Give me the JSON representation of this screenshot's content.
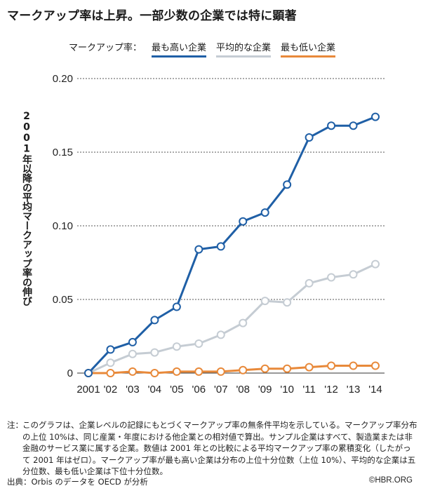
{
  "title": "マークアップ率は上昇。一部少数の企業では特に顕著",
  "legend": {
    "prefix": "マークアップ率：",
    "items": [
      {
        "label": "最も高い企業",
        "color": "#1f5fa6"
      },
      {
        "label": "平均的な企業",
        "color": "#c5ccd3"
      },
      {
        "label": "最も低い企業",
        "color": "#e8893a"
      }
    ]
  },
  "note": {
    "head": "注：",
    "body": "このグラフは、企業レベルの記録にもとづくマークアップ率の無条件平均を示している。マークアップ率分布の上位 10%は、同じ産業・年度における他企業との相対値で算出。サンプル企業はすべて、製造業または非金融のサービス業に属する企業。数値は 2001 年との比較による平均マークアップ率の累積変化（したがって 2001 年はゼロ）。マークアップ率が最も高い企業は分布の上位十分位数（上位 10%）、平均的な企業は五分位数、最も低い企業は下位十分位数。"
  },
  "source": "出典：Orbis のデータを OECD が分析",
  "credit": "©HBR.ORG",
  "chart_data": {
    "type": "line",
    "ylabel": "2001年以降の平均マークアップ率の伸び",
    "xlabel": "",
    "categories": [
      "2001",
      "'02",
      "'03",
      "'04",
      "'05",
      "'06",
      "'07",
      "'08",
      "'09",
      "'10",
      "'11",
      "'12",
      "'13",
      "'14"
    ],
    "yticks": [
      "0",
      "0.05",
      "0.10",
      "0.15",
      "0.20"
    ],
    "ylim": [
      0,
      0.2
    ],
    "grid": true,
    "series": [
      {
        "name": "最も高い企業",
        "color": "#1f5fa6",
        "values": [
          0,
          0.016,
          0.021,
          0.036,
          0.045,
          0.084,
          0.086,
          0.103,
          0.109,
          0.128,
          0.16,
          0.168,
          0.168,
          0.174
        ]
      },
      {
        "name": "平均的な企業",
        "color": "#c5ccd3",
        "values": [
          0,
          0.007,
          0.013,
          0.014,
          0.018,
          0.02,
          0.026,
          0.034,
          0.049,
          0.048,
          0.061,
          0.065,
          0.067,
          0.074
        ]
      },
      {
        "name": "最も低い企業",
        "color": "#e8893a",
        "values": [
          0,
          0.0,
          0.001,
          0.0,
          0.001,
          0.001,
          0.001,
          0.002,
          0.003,
          0.003,
          0.004,
          0.005,
          0.005,
          0.005
        ]
      }
    ]
  }
}
